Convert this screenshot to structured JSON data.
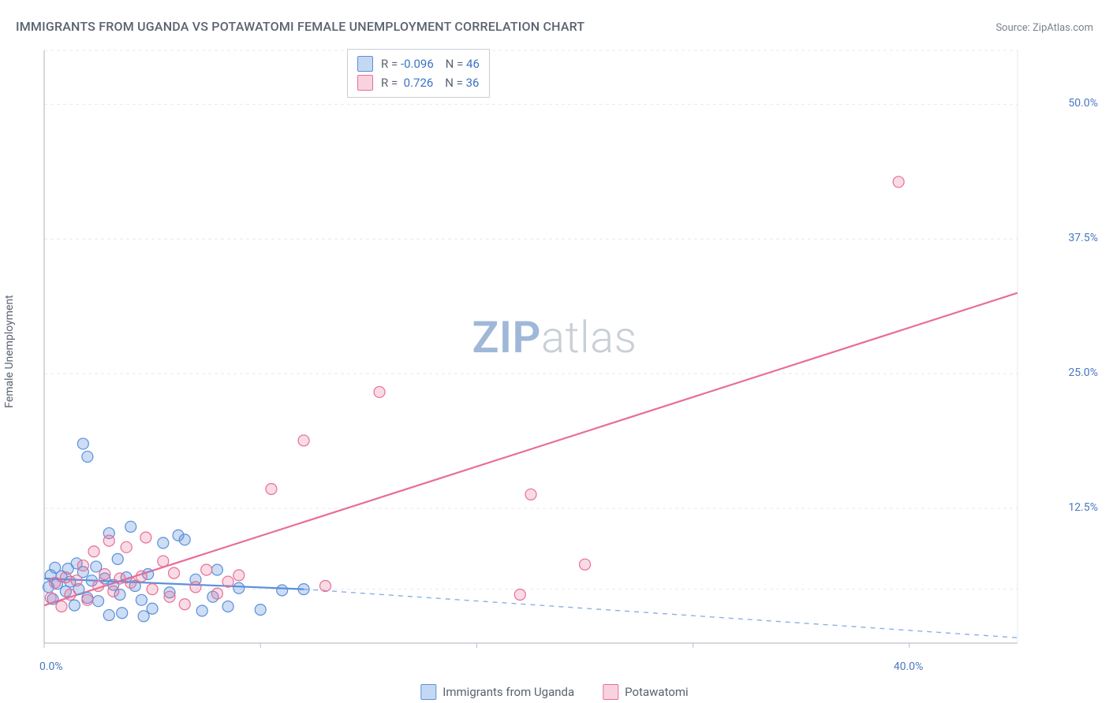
{
  "title": "IMMIGRANTS FROM UGANDA VS POTAWATOMI FEMALE UNEMPLOYMENT CORRELATION CHART",
  "source": {
    "label": "Source:",
    "name": "ZipAtlas.com"
  },
  "ylabel": "Female Unemployment",
  "watermark": {
    "bold": "ZIP",
    "rest": "atlas"
  },
  "chart": {
    "type": "scatter",
    "xlim": [
      0,
      45
    ],
    "ylim": [
      0,
      55
    ],
    "xticks": [
      0,
      10,
      20,
      30,
      40
    ],
    "xtick_labels": [
      "0.0%",
      "",
      "",
      "",
      "40.0%"
    ],
    "yticks": [
      12.5,
      25.0,
      37.5,
      50.0
    ],
    "ytick_labels": [
      "12.5%",
      "25.0%",
      "37.5%",
      "50.0%"
    ],
    "grid_y": [
      5,
      12.5,
      25,
      37.5,
      50,
      55
    ],
    "grid_color": "#e6e9ee",
    "axis_color": "#b9c0c9",
    "background_color": "#ffffff",
    "label_color": "#4a78c0",
    "marker_radius": 7,
    "series": [
      {
        "key": "uganda",
        "label": "Immigrants from Uganda",
        "color_fill": "rgba(90,144,220,0.30)",
        "color_stroke": "#5a90dc",
        "R": "-0.096",
        "N": "46",
        "fit": {
          "x1": 0,
          "y1": 6.0,
          "x2": 12,
          "y2": 5.0,
          "dash_from_x": 12,
          "dash_to_x": 45,
          "dash_to_y": 0.5
        },
        "points": [
          [
            0.2,
            5.2
          ],
          [
            0.3,
            6.3
          ],
          [
            0.4,
            4.1
          ],
          [
            0.5,
            7.0
          ],
          [
            0.6,
            5.5
          ],
          [
            0.8,
            6.2
          ],
          [
            1.0,
            4.8
          ],
          [
            1.1,
            6.9
          ],
          [
            1.2,
            5.7
          ],
          [
            1.4,
            3.5
          ],
          [
            1.5,
            7.4
          ],
          [
            1.6,
            5.0
          ],
          [
            1.8,
            6.6
          ],
          [
            1.8,
            18.5
          ],
          [
            2.0,
            17.3
          ],
          [
            2.0,
            4.2
          ],
          [
            2.2,
            5.8
          ],
          [
            2.4,
            7.1
          ],
          [
            2.5,
            3.9
          ],
          [
            2.8,
            6.0
          ],
          [
            3.0,
            10.2
          ],
          [
            3.0,
            2.6
          ],
          [
            3.2,
            5.4
          ],
          [
            3.4,
            7.8
          ],
          [
            3.5,
            4.5
          ],
          [
            3.6,
            2.8
          ],
          [
            3.8,
            6.1
          ],
          [
            4.0,
            10.8
          ],
          [
            4.2,
            5.3
          ],
          [
            4.5,
            4.0
          ],
          [
            4.6,
            2.5
          ],
          [
            4.8,
            6.4
          ],
          [
            5.0,
            3.2
          ],
          [
            5.5,
            9.3
          ],
          [
            5.8,
            4.7
          ],
          [
            6.2,
            10.0
          ],
          [
            6.5,
            9.6
          ],
          [
            7.0,
            5.9
          ],
          [
            7.3,
            3.0
          ],
          [
            7.8,
            4.3
          ],
          [
            8.0,
            6.8
          ],
          [
            8.5,
            3.4
          ],
          [
            9.0,
            5.1
          ],
          [
            10.0,
            3.1
          ],
          [
            11.0,
            4.9
          ],
          [
            12.0,
            5.0
          ]
        ]
      },
      {
        "key": "potawatomi",
        "label": "Potawatomi",
        "color_fill": "rgba(232,110,150,0.25)",
        "color_stroke": "#e86e96",
        "R": "0.726",
        "N": "36",
        "fit": {
          "x1": 0,
          "y1": 3.5,
          "x2": 45,
          "y2": 32.5
        },
        "points": [
          [
            0.3,
            4.2
          ],
          [
            0.5,
            5.6
          ],
          [
            0.8,
            3.4
          ],
          [
            1.0,
            6.1
          ],
          [
            1.2,
            4.5
          ],
          [
            1.5,
            5.8
          ],
          [
            1.8,
            7.2
          ],
          [
            2.0,
            4.0
          ],
          [
            2.3,
            8.5
          ],
          [
            2.5,
            5.3
          ],
          [
            2.8,
            6.4
          ],
          [
            3.0,
            9.5
          ],
          [
            3.2,
            4.8
          ],
          [
            3.5,
            6.0
          ],
          [
            3.8,
            8.9
          ],
          [
            4.0,
            5.6
          ],
          [
            4.5,
            6.2
          ],
          [
            4.7,
            9.8
          ],
          [
            5.0,
            5.0
          ],
          [
            5.5,
            7.6
          ],
          [
            5.8,
            4.3
          ],
          [
            6.0,
            6.5
          ],
          [
            6.5,
            3.6
          ],
          [
            7.0,
            5.2
          ],
          [
            7.5,
            6.8
          ],
          [
            8.0,
            4.6
          ],
          [
            8.5,
            5.7
          ],
          [
            9.0,
            6.3
          ],
          [
            10.5,
            14.3
          ],
          [
            12.0,
            18.8
          ],
          [
            13.0,
            5.3
          ],
          [
            15.5,
            23.3
          ],
          [
            22.0,
            4.5
          ],
          [
            22.5,
            13.8
          ],
          [
            25.0,
            7.3
          ],
          [
            39.5,
            42.8
          ]
        ]
      }
    ]
  },
  "legend_top": {
    "R_label": "R =",
    "N_label": "N ="
  },
  "legend_bottom": [
    {
      "swatch": "blue",
      "label_key": "chart.series.0.label"
    },
    {
      "swatch": "pink",
      "label_key": "chart.series.1.label"
    }
  ]
}
